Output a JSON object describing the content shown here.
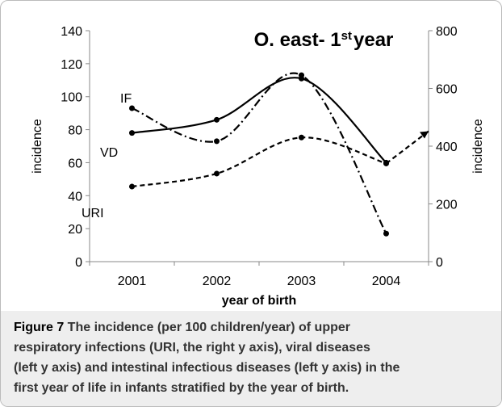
{
  "chart_data": {
    "type": "line",
    "title_parts": [
      "O. east- 1",
      "st",
      "year"
    ],
    "xlabel": "year of birth",
    "ylabel": "incidence",
    "y2label": "incidence",
    "categories": [
      "2001",
      "2002",
      "2003",
      "2004"
    ],
    "ylim": [
      0,
      140
    ],
    "yticks": [
      0,
      20,
      40,
      60,
      80,
      100,
      120,
      140
    ],
    "y2lim": [
      0,
      800
    ],
    "y2ticks": [
      0,
      200,
      400,
      600,
      800
    ],
    "series": [
      {
        "name": "VD",
        "color": "#000000",
        "dash": "solid",
        "axis": "y",
        "values": [
          78,
          86,
          111,
          60
        ]
      },
      {
        "name": "IF",
        "color": "#000000",
        "dash": "dashdot",
        "axis": "y",
        "values": [
          93,
          73,
          113,
          17
        ]
      },
      {
        "name": "URI",
        "color": "#000000",
        "dash": "dashed",
        "axis": "y2",
        "values": [
          260,
          305,
          430,
          340
        ]
      }
    ]
  },
  "caption": {
    "label": "Figure 7",
    "lines": [
      " The incidence (per 100 children/year) of upper",
      "respiratory infections (URI, the right y axis), viral diseases",
      "(left y axis) and intestinal infectious diseases (left y axis) in the",
      "first year of life in infants stratified by the year of birth."
    ]
  }
}
